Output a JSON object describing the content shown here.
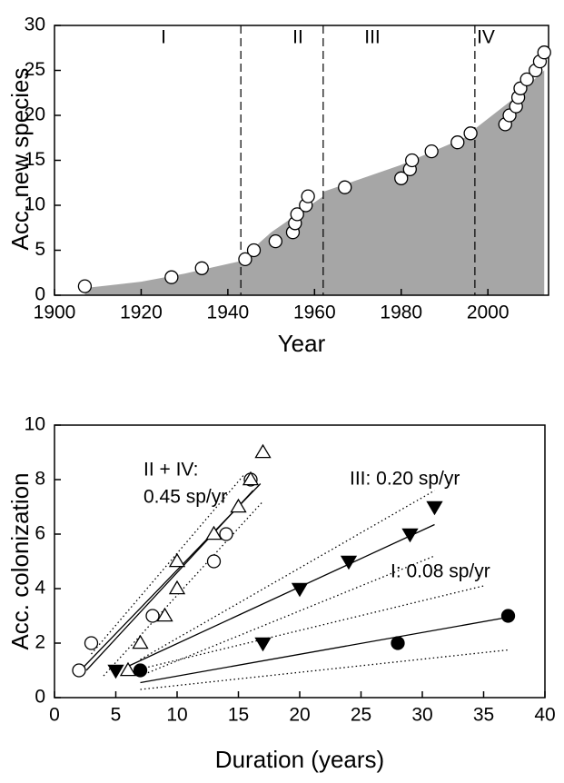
{
  "chart_data": [
    {
      "type": "scatter",
      "xlabel": "Year",
      "ylabel": "Acc. new species",
      "xlim": [
        1900,
        2014
      ],
      "ylim": [
        0,
        30
      ],
      "xticks": [
        1900,
        1920,
        1940,
        1960,
        1980,
        2000
      ],
      "yticks": [
        0,
        5,
        10,
        15,
        20,
        25,
        30
      ],
      "area": {
        "color": "#a6a6a6",
        "x": [
          1907,
          1920,
          1930,
          1943,
          1943,
          1950,
          1962,
          1962,
          1980,
          1997,
          1997,
          2005,
          2013
        ],
        "values": [
          0.8,
          1.5,
          2.4,
          3.8,
          4,
          7,
          11,
          11.5,
          14.5,
          18,
          18.5,
          21.5,
          25
        ]
      },
      "vlines": [
        1943,
        1962,
        1997
      ],
      "region_labels": [
        "I",
        "II",
        "III",
        "IV"
      ],
      "series": [
        {
          "marker": "circle-open",
          "x": [
            1907,
            1927,
            1934,
            1944,
            1946,
            1951,
            1955,
            1955.5,
            1956,
            1958,
            1958.5,
            1967,
            1980,
            1982,
            1982.5,
            1987,
            1993,
            1996,
            2004,
            2005,
            2006.5,
            2007,
            2007.5,
            2009,
            2011,
            2012,
            2013
          ],
          "values": [
            1,
            2,
            3,
            4,
            5,
            6,
            7,
            8,
            9,
            10,
            11,
            12,
            13,
            14,
            15,
            16,
            17,
            18,
            19,
            20,
            21,
            22,
            23,
            24,
            25,
            26,
            27
          ]
        }
      ]
    },
    {
      "type": "scatter",
      "xlabel": "Duration (years)",
      "ylabel": "Acc. colonization",
      "xlim": [
        0,
        40
      ],
      "ylim": [
        0,
        10
      ],
      "xticks": [
        0,
        5,
        10,
        15,
        20,
        25,
        30,
        35,
        40
      ],
      "yticks": [
        0,
        2,
        4,
        6,
        8,
        10
      ],
      "annotations": [
        "II + IV:",
        "0.45 sp/yr",
        "III: 0.20 sp/yr",
        "I: 0.08 sp/yr"
      ],
      "series": [
        {
          "marker": "circle-open",
          "x": [
            2,
            3,
            8,
            13,
            14,
            16
          ],
          "values": [
            1,
            2,
            3,
            5,
            6,
            8
          ]
        },
        {
          "marker": "triangle-up-open",
          "x": [
            6,
            7,
            9,
            10,
            10,
            13,
            15,
            16,
            17
          ],
          "values": [
            1,
            2,
            3,
            4,
            5,
            6,
            7,
            8,
            9
          ]
        },
        {
          "marker": "triangle-down-filled",
          "x": [
            5,
            17,
            20,
            24,
            29,
            31
          ],
          "values": [
            1,
            2,
            4,
            5,
            6,
            7
          ]
        },
        {
          "marker": "circle-filled",
          "x": [
            7,
            28,
            37
          ],
          "values": [
            1,
            2,
            3
          ]
        }
      ],
      "fits": [
        {
          "style": "solid",
          "x": [
            2,
            16.8
          ],
          "y": [
            0.95,
            7.85
          ]
        },
        {
          "style": "solid",
          "x": [
            2.6,
            16.2
          ],
          "y": [
            1.0,
            7.6
          ]
        },
        {
          "style": "dotted",
          "x": [
            3,
            15.5
          ],
          "y": [
            1.6,
            8.2
          ]
        },
        {
          "style": "dotted",
          "x": [
            4,
            17
          ],
          "y": [
            0.8,
            7.2
          ]
        },
        {
          "style": "solid",
          "x": [
            6,
            31
          ],
          "y": [
            1.15,
            6.35
          ]
        },
        {
          "style": "dotted",
          "x": [
            7,
            31
          ],
          "y": [
            1.4,
            7.6
          ]
        },
        {
          "style": "dotted",
          "x": [
            7,
            31
          ],
          "y": [
            0.8,
            5.2
          ]
        },
        {
          "style": "solid",
          "x": [
            7,
            37
          ],
          "y": [
            0.55,
            2.95
          ]
        },
        {
          "style": "dotted",
          "x": [
            7,
            35
          ],
          "y": [
            1.05,
            4.1
          ]
        },
        {
          "style": "dotted",
          "x": [
            7,
            37
          ],
          "y": [
            0.3,
            1.75
          ]
        }
      ]
    }
  ]
}
